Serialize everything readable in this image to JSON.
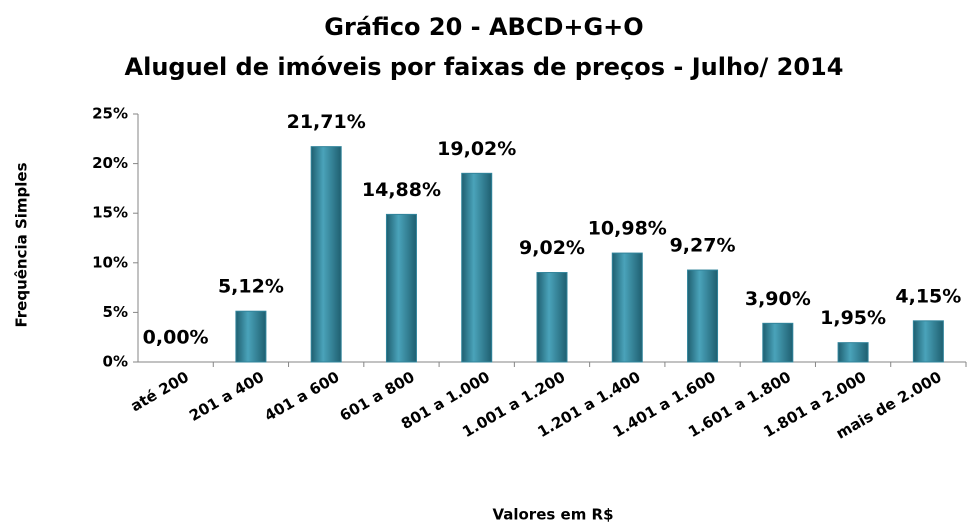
{
  "chart_data": {
    "type": "bar",
    "title": "Gráfico 20 - ABCD+G+O",
    "subtitle": "Aluguel de imóveis por faixas de preços - Julho/ 2014",
    "x_label": "Valores em R$",
    "y_label": "Frequência Simples",
    "categories": [
      "até 200",
      "201 a 400",
      "401 a 600",
      "601 a 800",
      "801 a 1.000",
      "1.001 a 1.200",
      "1.201 a 1.400",
      "1.401 a 1.600",
      "1.601 a 1.800",
      "1.801 a 2.000",
      "mais de 2.000"
    ],
    "values": [
      0,
      5.12,
      21.71,
      14.88,
      19.02,
      9.02,
      10.98,
      9.27,
      3.9,
      1.95,
      4.15
    ],
    "value_labels": [
      "0,00%",
      "5,12%",
      "21,71%",
      "14,88%",
      "19,02%",
      "9,02%",
      "10,98%",
      "9,27%",
      "3,90%",
      "1,95%",
      "4,15%"
    ],
    "color": "#31849b",
    "ylim": [
      0,
      25
    ],
    "yticks": [
      {
        "value": 0,
        "label": "0%"
      },
      {
        "value": 5,
        "label": "5%"
      },
      {
        "value": 10,
        "label": "10%"
      },
      {
        "value": 15,
        "label": "15%"
      },
      {
        "value": 20,
        "label": "20%"
      },
      {
        "value": 25,
        "label": "25%"
      }
    ],
    "grid": false
  }
}
